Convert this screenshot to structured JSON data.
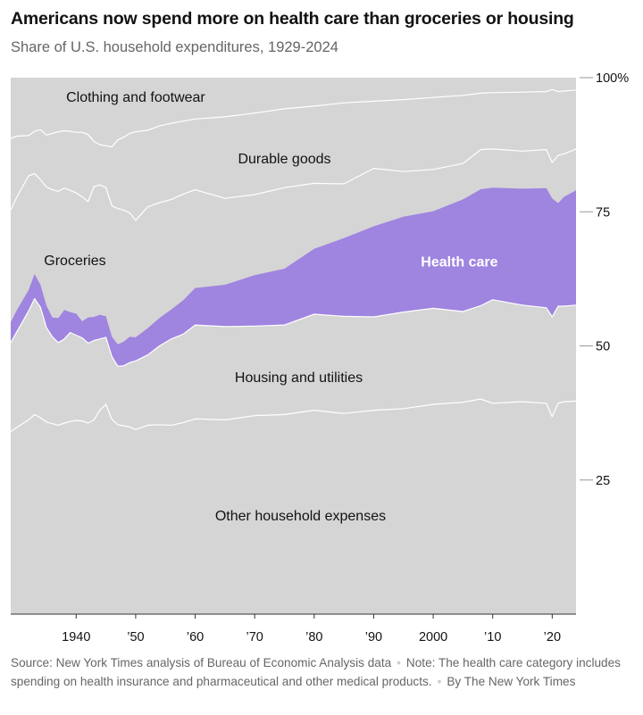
{
  "title": "Americans now spend more on health care than groceries or housing",
  "subtitle": "Share of U.S. household expenditures, 1929-2024",
  "footer": {
    "source": "Source: New York Times analysis of Bureau of Economic Analysis data",
    "note": "Note: The health care category includes spending on health insurance and pharmaceutical and other medical products.",
    "credit": "By The New York Times"
  },
  "colors": {
    "background_band": "#d5d5d5",
    "health_care": "#9f84e0",
    "divider": "#ffffff",
    "axis_text": "#121212",
    "tick_line": "#999999"
  },
  "chart_data": {
    "type": "area",
    "stacked": true,
    "title": "Americans now spend more on health care than groceries or housing",
    "subtitle": "Share of U.S. household expenditures, 1929-2024",
    "xlabel": "",
    "ylabel": "",
    "xlim": [
      1929,
      2024
    ],
    "ylim": [
      0,
      100
    ],
    "x_ticks": [
      {
        "value": 1940,
        "label": "1940"
      },
      {
        "value": 1950,
        "label": "’50"
      },
      {
        "value": 1960,
        "label": "’60"
      },
      {
        "value": 1970,
        "label": "’70"
      },
      {
        "value": 1980,
        "label": "’80"
      },
      {
        "value": 1990,
        "label": "’90"
      },
      {
        "value": 2000,
        "label": "2000"
      },
      {
        "value": 2010,
        "label": "’10"
      },
      {
        "value": 2020,
        "label": "’20"
      }
    ],
    "y_ticks": [
      {
        "value": 100,
        "label": "100%"
      },
      {
        "value": 75,
        "label": "75"
      },
      {
        "value": 50,
        "label": "50"
      },
      {
        "value": 25,
        "label": "25"
      }
    ],
    "grid": false,
    "legend": "none",
    "series_order_bottom_to_top": [
      "Other household expenses",
      "Housing and utilities",
      "Health care",
      "Groceries",
      "Durable goods",
      "Clothing and footwear"
    ],
    "boundaries": {
      "x": [
        1929,
        1930,
        1932,
        1933,
        1934,
        1935,
        1936,
        1937,
        1938,
        1939,
        1940,
        1941,
        1942,
        1943,
        1944,
        1945,
        1946,
        1947,
        1948,
        1949,
        1950,
        1952,
        1954,
        1956,
        1958,
        1960,
        1965,
        1970,
        1975,
        1980,
        1985,
        1990,
        1995,
        2000,
        2005,
        2008,
        2010,
        2015,
        2019,
        2020,
        2021,
        2022,
        2024
      ],
      "other_top": [
        34,
        34.8,
        36.2,
        37.2,
        36.6,
        35.8,
        35.5,
        35.2,
        35.6,
        35.9,
        36.1,
        36,
        35.6,
        36.2,
        38,
        39.1,
        36.3,
        35.3,
        35.1,
        34.9,
        34.4,
        35.2,
        35.3,
        35.2,
        35.7,
        36.4,
        36.2,
        37,
        37.2,
        38,
        37.4,
        38,
        38.3,
        39.1,
        39.5,
        40.1,
        39.3,
        39.6,
        39.3,
        36.8,
        39.3,
        39.6,
        39.7
      ],
      "housing_top": [
        50.6,
        52.6,
        56.5,
        58.8,
        57.2,
        53.4,
        51.7,
        50.6,
        51.3,
        52.5,
        52,
        51.5,
        50.5,
        51,
        51.3,
        51.6,
        48,
        46.2,
        46.3,
        46.9,
        47.2,
        48.3,
        50,
        51.3,
        52.2,
        53.9,
        53.6,
        53.7,
        53.9,
        55.9,
        55.5,
        55.4,
        56.3,
        57,
        56.4,
        57.5,
        58.6,
        57.6,
        57.1,
        55.4,
        57.4,
        57.4,
        57.6
      ],
      "health_top": [
        54.4,
        56.6,
        60.4,
        63.4,
        61.4,
        57.5,
        55.3,
        55.2,
        56.7,
        56.3,
        56,
        54.6,
        55.3,
        55.4,
        55.8,
        55.5,
        51.7,
        50.3,
        50.8,
        51.7,
        51.6,
        53.3,
        55.2,
        56.8,
        58.5,
        60.8,
        61.4,
        63.2,
        64.4,
        68.1,
        70.1,
        72.3,
        74.1,
        75.1,
        77.3,
        79.2,
        79.5,
        79.3,
        79.4,
        77.5,
        76.6,
        77.8,
        79
      ],
      "groceries_top": [
        75.3,
        77.7,
        81.7,
        82.1,
        81,
        79.6,
        79.1,
        78.8,
        79.4,
        79,
        78.5,
        77.8,
        76.9,
        79.7,
        80,
        79.5,
        76.1,
        75.6,
        75.3,
        74.8,
        73.4,
        75.9,
        76.7,
        77.3,
        78.3,
        79.1,
        77.5,
        78.2,
        79.5,
        80.3,
        80.2,
        83.1,
        82.5,
        82.9,
        84,
        86.6,
        86.7,
        86.3,
        86.6,
        84.2,
        85.5,
        85.8,
        86.7
      ],
      "durable_top": [
        88.7,
        89.1,
        89.2,
        90,
        90.3,
        89.3,
        89.6,
        89.9,
        90.1,
        90,
        89.8,
        89.8,
        89.4,
        88.1,
        87.5,
        87.3,
        87.1,
        88.4,
        88.9,
        89.6,
        89.9,
        90.2,
        91,
        91.5,
        91.9,
        92.3,
        92.7,
        93.4,
        94.2,
        94.7,
        95.3,
        95.6,
        95.9,
        96.3,
        96.7,
        97.1,
        97.2,
        97.3,
        97.4,
        97.8,
        97.4,
        97.5,
        97.7
      ],
      "total": 100
    },
    "labels": [
      {
        "text": "Clothing and footwear",
        "x": 1950,
        "y": 96.3,
        "anchor": "middle",
        "color": "#121212"
      },
      {
        "text": "Durable goods",
        "x": 1975,
        "y": 84.9,
        "anchor": "middle",
        "color": "#121212"
      },
      {
        "text": "Groceries",
        "x": 1939.8,
        "y": 65.9,
        "anchor": "middle",
        "color": "#121212"
      },
      {
        "text": "Health care",
        "x": 2004.4,
        "y": 65.6,
        "anchor": "middle",
        "color": "#ffffff",
        "bold": true
      },
      {
        "text": "Housing and utilities",
        "x": 1977.4,
        "y": 44.1,
        "anchor": "middle",
        "color": "#121212"
      },
      {
        "text": "Other household expenses",
        "x": 1977.7,
        "y": 18.3,
        "anchor": "middle",
        "color": "#121212"
      }
    ]
  }
}
